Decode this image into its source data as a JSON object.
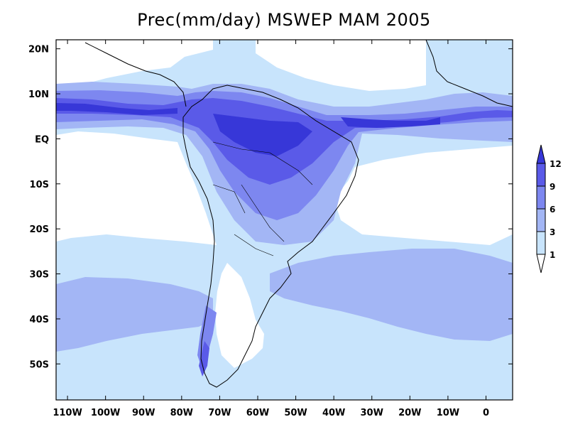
{
  "title": "Prec(mm/day) MSWEP MAM 2005",
  "lat_labels": [
    "20N",
    "10N",
    "EQ",
    "10S",
    "20S",
    "30S",
    "40S",
    "50S"
  ],
  "lat_values": [
    20,
    10,
    0,
    -10,
    -20,
    -30,
    -40,
    -50
  ],
  "lon_labels": [
    "110W",
    "100W",
    "90W",
    "80W",
    "70W",
    "60W",
    "50W",
    "40W",
    "30W",
    "20W",
    "10W",
    "0"
  ],
  "lon_values": [
    -110,
    -100,
    -90,
    -80,
    -70,
    -60,
    -50,
    -40,
    -30,
    -20,
    -10,
    0
  ],
  "extent": {
    "lon_min": -113,
    "lon_max": 7,
    "lat_min": -58,
    "lat_max": 22
  },
  "legend": {
    "labels": [
      "1",
      "3",
      "6",
      "9",
      "12"
    ],
    "colors": [
      "#ffffff",
      "#c8e4fc",
      "#a3b6f5",
      "#7d87f0",
      "#5a5ae8",
      "#3737d8"
    ]
  },
  "colors": {
    "ocean_base": "#c8e4fc",
    "dry": "#ffffff",
    "l3": "#a3b6f5",
    "l6": "#7d87f0",
    "l9": "#5a5ae8",
    "l12": "#3737d8"
  }
}
